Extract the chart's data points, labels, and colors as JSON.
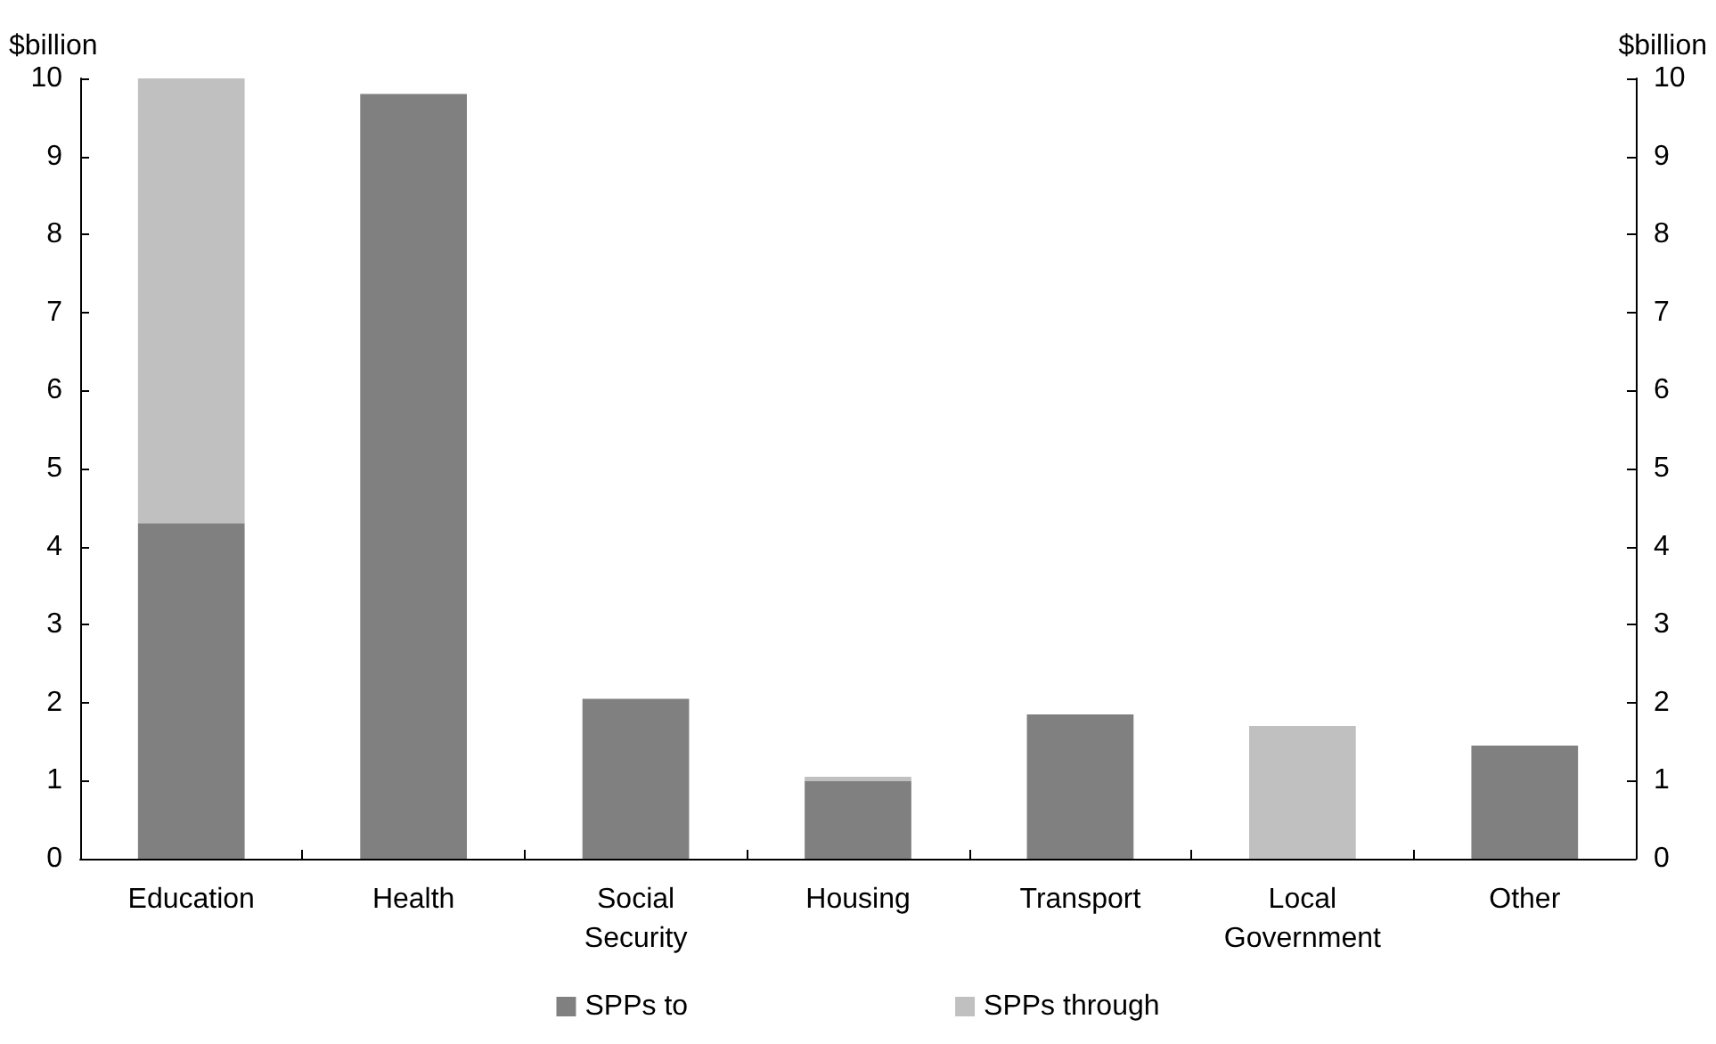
{
  "chart_data": {
    "type": "bar",
    "stacked": true,
    "ylabel": "$billion",
    "y2label": "$billion",
    "categories": [
      "Education",
      "Health",
      "Social\nSecurity",
      "Housing",
      "Transport",
      "Local\nGovernment",
      "Other"
    ],
    "series": [
      {
        "name": "SPPs to",
        "color": "#808080",
        "values": [
          4.3,
          9.8,
          2.05,
          1.0,
          1.85,
          null,
          1.45
        ]
      },
      {
        "name": "SPPs through",
        "color": "#c0c0c0",
        "values": [
          5.7,
          null,
          null,
          0.05,
          null,
          1.7,
          null
        ]
      }
    ],
    "ylim": [
      0,
      10
    ],
    "yticks": [
      0,
      1,
      2,
      3,
      4,
      5,
      6,
      7,
      8,
      9,
      10
    ],
    "y2lim": [
      0,
      10
    ],
    "y2ticks": [
      0,
      1,
      2,
      3,
      4,
      5,
      6,
      7,
      8,
      9,
      10
    ],
    "grid": false,
    "legend": "bottom"
  }
}
